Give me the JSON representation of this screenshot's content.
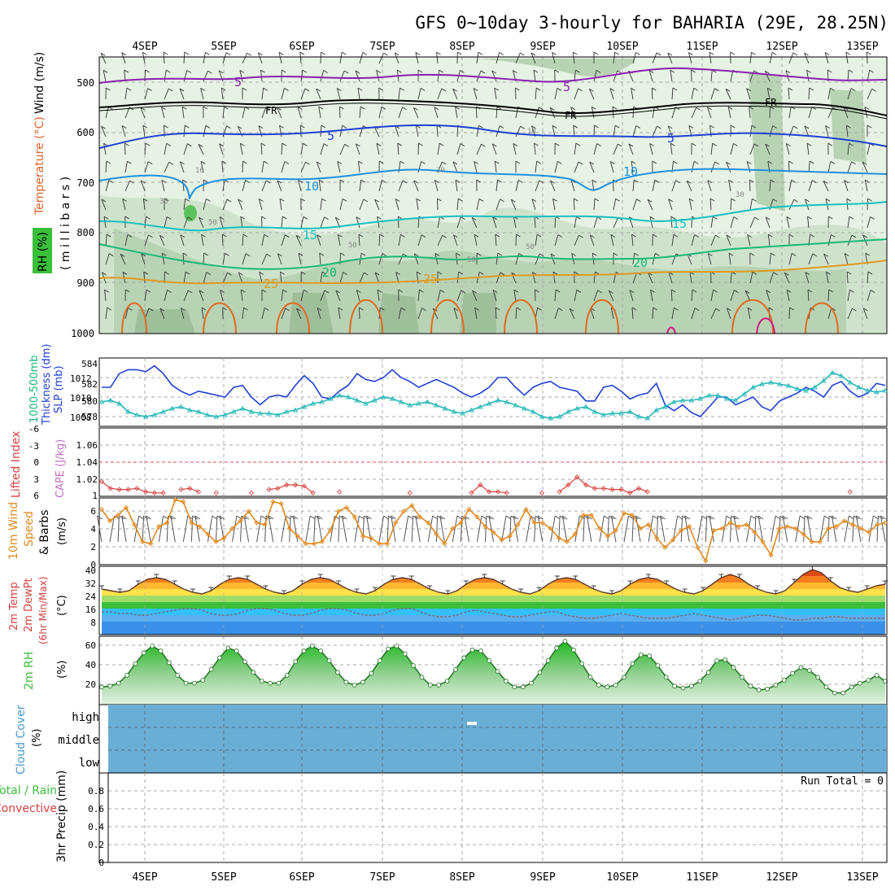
{
  "title": "GFS 0~10day 3-hourly for BAHARIA (29E, 28.25N)",
  "dates": [
    "4SEP",
    "5SEP",
    "6SEP",
    "7SEP",
    "8SEP",
    "9SEP",
    "10SEP",
    "11SEP",
    "12SEP",
    "13SEP"
  ],
  "colors": {
    "frame": "#000000",
    "grid": "#aaaaaa",
    "slp": "#1f3fd6",
    "thickness": "#24b8b8",
    "lifted_index": "#d84040",
    "wind": "#e08a20",
    "barb": "#000000",
    "rh_fill": "#3bbf3b",
    "cloud": "#6aaed6",
    "temp_5": "#8a1fb0",
    "temp_10": "#1e90e0",
    "temp_15": "#16c0c0",
    "temp_20": "#18b878",
    "temp_25": "#e09a20",
    "freeze": "#000000"
  },
  "panels": {
    "upper": {
      "ylabel_rh": "RH (%)",
      "ylabel_temp": "Temperature (°C)",
      "ylabel_wind": "Wind (m/s)",
      "ylabel_unit": "( m i l l i b a r s )",
      "levels": [
        "500",
        "600",
        "700",
        "800",
        "900",
        "1000"
      ],
      "isotherm_labels": [
        "5",
        "FR",
        "5",
        "10",
        "15",
        "20",
        "25"
      ],
      "rh_labels": [
        "10",
        "30",
        "50"
      ]
    },
    "slp": {
      "ylabel_left": "1000-500mb",
      "ylabel_left2": "Thickness (dm)",
      "ylabel_right": "SLP (mb)",
      "left_ticks": [
        "584",
        "582",
        "580",
        "578"
      ],
      "right_ticks": [
        "1012",
        "1010",
        "1008"
      ]
    },
    "cape": {
      "ylabel_left": "Lifted Index",
      "ylabel_right": "CAPE (J/kg)",
      "left_ticks": [
        "-6",
        "-3",
        "0",
        "3",
        "6"
      ],
      "right_ticks": [
        "1.06",
        "1.04",
        "1.02",
        "1"
      ]
    },
    "wind10m": {
      "ylabel_1": "10m Wind",
      "ylabel_2": "Speed",
      "ylabel_3": "& Barbs",
      "ylabel_unit": "(m/s)",
      "ticks": [
        "6",
        "4",
        "2",
        "0"
      ]
    },
    "temp2m": {
      "ylabel_1": "2m Temp",
      "ylabel_2": "2m DewPt",
      "ylabel_3": "(6hr Min/Max)",
      "ylabel_unit": "(°C)",
      "ticks": [
        "40",
        "32",
        "24",
        "16",
        "8"
      ]
    },
    "rh2m": {
      "ylabel_1": "2m RH",
      "ylabel_unit": "(%)",
      "ticks": [
        "60",
        "40",
        "20"
      ]
    },
    "cloud": {
      "ylabel": "Cloud Cover",
      "ylabel_unit": "(%)",
      "levels": [
        "high",
        "middle",
        "low"
      ]
    },
    "precip": {
      "ylabel_1": "Total / Rain",
      "ylabel_2": "Convective",
      "ylabel_3": "3hr Precip (mm)",
      "ticks": [
        "0.8",
        "0.6",
        "0.4",
        "0.2",
        "0"
      ],
      "run_total": "Run Total = 0"
    }
  },
  "chart_data": {
    "type": "line",
    "x_start": "4SEP",
    "x_step_hours": 3,
    "series": [
      {
        "name": "SLP (mb)",
        "values": [
          1011.0,
          1011.0,
          1012.4,
          1012.8,
          1012.8,
          1012.6,
          1013.2,
          1012.4,
          1011.2,
          1010.6,
          1010.2,
          1010.6,
          1010.4,
          1010.2,
          1010.0,
          1011.0,
          1011.2,
          1010.0,
          1009.2,
          1010.0,
          1010.2,
          1010.0,
          1011.2,
          1012.2,
          1011.4,
          1010.0,
          1009.8,
          1010.6,
          1011.2,
          1012.4,
          1011.8,
          1011.6,
          1012.0,
          1012.8,
          1012.0,
          1011.6,
          1011.0,
          1011.4,
          1011.8,
          1011.4,
          1011.0,
          1010.4,
          1010.0,
          1010.4,
          1011.0,
          1012.0,
          1012.0,
          1011.0,
          1010.2,
          1011.0,
          1011.4,
          1011.6,
          1011.0,
          1010.8,
          1010.6,
          1009.6,
          1009.6,
          1011.0,
          1011.2,
          1010.6,
          1009.8,
          1010.2,
          1010.4,
          1011.4,
          1009.2,
          1008.6,
          1009.2,
          1008.4,
          1008.0,
          1009.0,
          1010.0,
          1010.0,
          1009.2,
          1009.6,
          1010.0,
          1009.0,
          1008.6,
          1009.6,
          1010.0,
          1010.4,
          1011.0,
          1010.6,
          1010.0,
          1011.2,
          1011.6,
          1010.6,
          1010.0,
          1010.4,
          1011.4,
          1011.2
        ]
      },
      {
        "name": "1000-500mb Thickness (dm)",
        "values": [
          579.8,
          580.0,
          579.6,
          578.6,
          578.2,
          578.0,
          578.2,
          578.6,
          579.0,
          579.2,
          578.8,
          578.6,
          578.2,
          578.0,
          578.2,
          578.6,
          579.0,
          578.6,
          578.4,
          578.4,
          578.2,
          578.6,
          578.8,
          579.2,
          579.6,
          579.8,
          580.2,
          580.6,
          580.4,
          580.0,
          579.6,
          580.0,
          580.4,
          580.2,
          579.8,
          579.4,
          579.6,
          579.8,
          579.4,
          579.0,
          578.6,
          578.4,
          578.8,
          579.2,
          579.6,
          580.0,
          579.8,
          579.4,
          579.0,
          578.6,
          578.0,
          577.8,
          578.0,
          578.6,
          579.0,
          579.2,
          578.6,
          578.2,
          578.4,
          578.4,
          578.6,
          578.0,
          577.8,
          578.8,
          579.2,
          579.8,
          580.0,
          580.0,
          580.2,
          580.6,
          580.6,
          580.2,
          580.0,
          580.8,
          581.6,
          582.0,
          582.2,
          582.0,
          581.8,
          581.4,
          581.2,
          581.6,
          582.4,
          583.4,
          583.0,
          582.2,
          581.6,
          581.2,
          581.0,
          581.2
        ]
      },
      {
        "name": "Lifted Index",
        "values": [
          3.4,
          4.6,
          4.8,
          4.8,
          4.6,
          5.2,
          5.4,
          5.4,
          5.6,
          4.8,
          4.6,
          5.2,
          5.6,
          5.4,
          5.6,
          5.6,
          5.6,
          5.4,
          5.6,
          4.8,
          4.6,
          4.0,
          4.0,
          4.2,
          5.4,
          5.6,
          5.6,
          5.2,
          5.6,
          5.6,
          5.6,
          5.6,
          5.6,
          5.6,
          5.6,
          5.4,
          5.6,
          5.6,
          5.6,
          5.6,
          5.6,
          5.6,
          5.4,
          4.0,
          5.2,
          5.2,
          5.4,
          5.6,
          5.6,
          5.6,
          5.4,
          5.6,
          5.2,
          4.0,
          2.6,
          4.0,
          4.6,
          4.6,
          4.8,
          4.8,
          5.4,
          4.6,
          5.2,
          5.6,
          5.6,
          5.6,
          5.6,
          5.6,
          5.6,
          5.6,
          5.6,
          5.6,
          5.6,
          5.6,
          5.6,
          5.6,
          5.6,
          5.6,
          5.6,
          5.6,
          5.6,
          5.6,
          5.6,
          5.6,
          5.6,
          5.2,
          5.6,
          5.6,
          5.6,
          5.6
        ]
      },
      {
        "name": "10m Wind Speed (m/s)",
        "values": [
          5.8,
          4.6,
          5.2,
          6.0,
          4.2,
          2.4,
          2.2,
          4.0,
          4.4,
          6.8,
          6.6,
          4.4,
          4.0,
          3.2,
          2.4,
          2.8,
          3.8,
          4.6,
          5.6,
          4.4,
          4.2,
          6.6,
          6.4,
          3.8,
          3.0,
          2.2,
          2.2,
          2.4,
          3.6,
          5.6,
          6.0,
          5.0,
          3.0,
          2.8,
          2.2,
          2.2,
          4.4,
          5.6,
          6.2,
          5.0,
          4.4,
          3.2,
          2.2,
          3.8,
          4.4,
          5.8,
          5.0,
          4.0,
          3.4,
          2.6,
          3.0,
          4.2,
          5.8,
          4.4,
          4.4,
          3.8,
          2.8,
          2.4,
          3.2,
          5.2,
          5.2,
          3.8,
          3.0,
          3.6,
          5.4,
          5.2,
          3.8,
          4.2,
          2.8,
          1.8,
          2.6,
          3.6,
          4.0,
          1.8,
          0.4,
          3.6,
          3.8,
          4.4,
          4.0,
          4.2,
          3.4,
          2.4,
          1.0,
          3.8,
          4.0,
          3.8,
          3.2,
          2.4,
          2.4,
          3.8,
          4.0,
          4.6,
          4.2,
          3.8,
          3.4,
          4.2,
          4.4
        ]
      },
      {
        "name": "2m Temp (°C)",
        "values": [
          28,
          27,
          26,
          27,
          31,
          34,
          35,
          34,
          31,
          28,
          26,
          25,
          27,
          31,
          34,
          35,
          34,
          31,
          28,
          26,
          25,
          27,
          31,
          34,
          35,
          34,
          31,
          28,
          26,
          25,
          27,
          31,
          34,
          35,
          34,
          31,
          28,
          26,
          25,
          27,
          31,
          34,
          35,
          34,
          31,
          28,
          26,
          25,
          27,
          31,
          34,
          35,
          34,
          31,
          28,
          26,
          25,
          27,
          31,
          34,
          35,
          34,
          31,
          28,
          26,
          25,
          27,
          31,
          35,
          37,
          35,
          31,
          28,
          26,
          25,
          27,
          32,
          37,
          40,
          38,
          33,
          29,
          27,
          26,
          28,
          30,
          31
        ]
      },
      {
        "name": "2m DewPt (°C)",
        "values": [
          14,
          14,
          13,
          13,
          12,
          12,
          13,
          14,
          15,
          16,
          16,
          15,
          13,
          12,
          12,
          13,
          15,
          16,
          16,
          15,
          13,
          12,
          12,
          13,
          15,
          16,
          16,
          15,
          13,
          12,
          12,
          13,
          15,
          16,
          16,
          14,
          12,
          11,
          11,
          12,
          14,
          15,
          14,
          13,
          12,
          11,
          11,
          12,
          13,
          14,
          14,
          12,
          11,
          10,
          10,
          11,
          12,
          13,
          12,
          11,
          10,
          10,
          10,
          11,
          12,
          13,
          12,
          11,
          10,
          9,
          10,
          11,
          12,
          12,
          11,
          10,
          9,
          9,
          10,
          10,
          11,
          11,
          10,
          10,
          10,
          10,
          10
        ]
      },
      {
        "name": "2m RH (%)",
        "values": [
          18,
          19,
          22,
          30,
          42,
          53,
          60,
          55,
          43,
          30,
          22,
          22,
          25,
          36,
          48,
          58,
          55,
          44,
          33,
          24,
          22,
          22,
          30,
          44,
          55,
          60,
          55,
          45,
          33,
          23,
          20,
          23,
          32,
          45,
          57,
          60,
          52,
          40,
          28,
          20,
          20,
          24,
          36,
          48,
          56,
          55,
          45,
          34,
          24,
          18,
          18,
          22,
          33,
          45,
          58,
          65,
          56,
          42,
          28,
          20,
          18,
          20,
          28,
          42,
          51,
          50,
          40,
          28,
          19,
          17,
          19,
          24,
          33,
          45,
          46,
          38,
          28,
          19,
          15,
          16,
          20,
          25,
          32,
          38,
          35,
          28,
          18,
          12,
          12,
          18,
          22,
          25,
          30,
          24
        ]
      },
      {
        "name": "3hr Precip (mm)",
        "values": [
          0,
          0,
          0,
          0,
          0,
          0,
          0,
          0,
          0,
          0
        ]
      }
    ],
    "ylim_slp": [
      1007,
      1014
    ],
    "ylim_thickness": [
      576.8,
      585.2
    ],
    "ylim_lifted_index": [
      -6,
      6
    ],
    "ylim_cape": [
      1,
      1.06
    ],
    "ylim_wind": [
      0,
      7
    ],
    "ylim_temp": [
      0,
      42
    ],
    "ylim_rh": [
      0,
      70
    ],
    "ylim_precip": [
      0,
      1
    ]
  }
}
